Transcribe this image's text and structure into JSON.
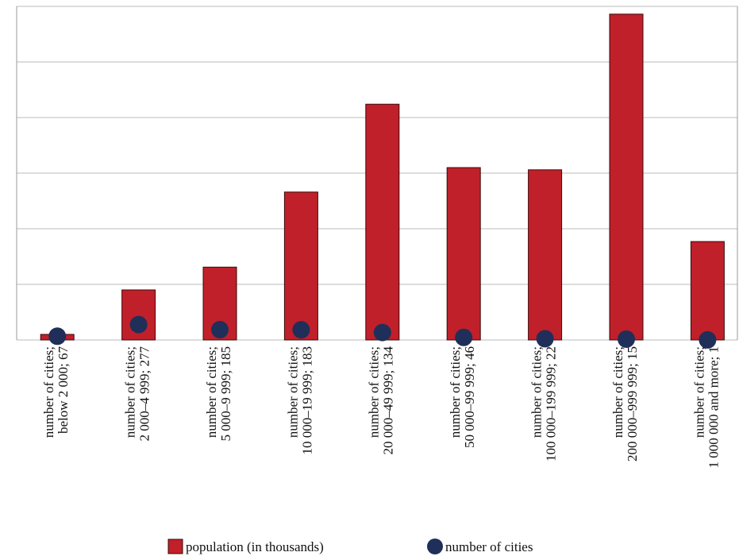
{
  "chart_data": {
    "type": "bar",
    "categories": [
      [
        "number of cities;",
        "below 2 000; 67"
      ],
      [
        "number of cities;",
        "2 000–4 999; 277"
      ],
      [
        "number of cities;",
        "5 000–9 999; 185"
      ],
      [
        "number of cities;",
        "10 000–19 999; 183"
      ],
      [
        "number of cities;",
        "20 000–49 999; 134"
      ],
      [
        "number of cities;",
        "50 000–99 999; 46"
      ],
      [
        "number of cities;",
        "100 000–199 999; 22"
      ],
      [
        "number of cities;",
        "200 000–999 999; 15"
      ],
      [
        "number of cities;",
        "1 000 000 and more; 1"
      ]
    ],
    "series": [
      {
        "name": "population (in thousands)",
        "color": "#c0202a",
        "values": [
          0.1,
          0.9,
          1.31,
          2.66,
          4.24,
          3.1,
          3.06,
          5.86,
          1.77
        ]
      },
      {
        "name": "number of cities",
        "color": "#1f2f5a",
        "axis": "y2",
        "values": [
          67,
          277,
          185,
          183,
          134,
          46,
          22,
          15,
          1
        ]
      }
    ],
    "ylim": [
      0,
      6
    ],
    "yticks": [
      0,
      1,
      2,
      3,
      4,
      5,
      6
    ],
    "y2lim": [
      0,
      6000
    ],
    "grid": true
  }
}
